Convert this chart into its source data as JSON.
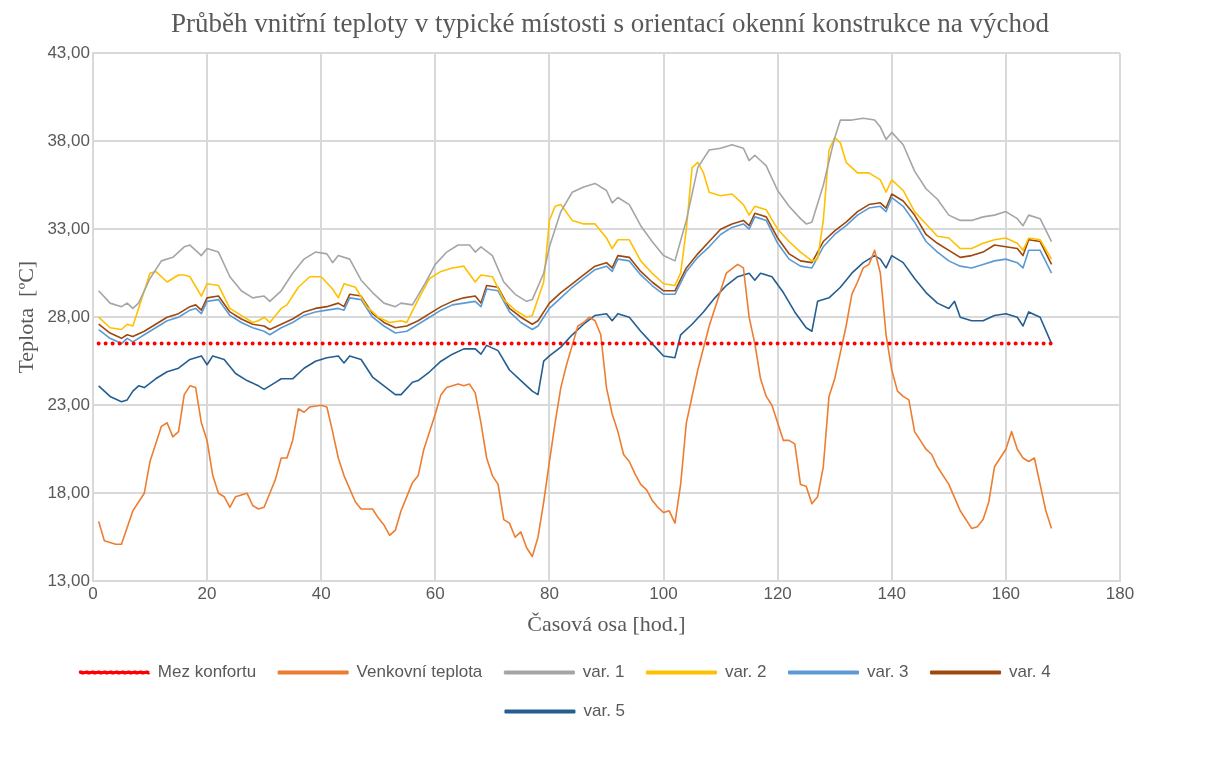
{
  "chart_data": {
    "type": "line",
    "title": "Průběh vnitřní teploty v typické místosti s orientací okenní konstrukce na východ",
    "xlabel": "Časová osa [hod.]",
    "ylabel": "Teplota  [ºC]",
    "xlim": [
      0,
      180
    ],
    "xticks": [
      0,
      20,
      40,
      60,
      80,
      100,
      120,
      140,
      160,
      180
    ],
    "ylim": [
      13,
      43
    ],
    "yticks": [
      {
        "value": 13,
        "label": "13,00"
      },
      {
        "value": 18,
        "label": "18,00"
      },
      {
        "value": 23,
        "label": "23,00"
      },
      {
        "value": 28,
        "label": "28,00"
      },
      {
        "value": 33,
        "label": "33,00"
      },
      {
        "value": 38,
        "label": "38,00"
      },
      {
        "value": 43,
        "label": "43,00"
      }
    ],
    "grid": true,
    "legend": "bottom",
    "marker": "none",
    "series": [
      {
        "name": "Mez konfortu",
        "color": "#ff0000",
        "line_style": "dotted",
        "x": [
          1,
          168
        ],
        "values": [
          26.5,
          26.5
        ]
      },
      {
        "name": "Venkovní teplota",
        "color": "#ed7d31",
        "x": [
          1,
          2,
          4,
          5,
          7,
          9,
          10,
          12,
          13,
          14,
          15,
          16,
          17,
          18,
          19,
          20,
          21,
          22,
          23,
          24,
          25,
          27,
          28,
          29,
          30,
          31,
          32,
          33,
          34,
          35,
          36,
          37,
          38,
          40,
          41,
          42,
          43,
          44,
          46,
          47,
          49,
          50,
          51,
          52,
          53,
          54,
          56,
          57,
          58,
          60,
          61,
          62,
          64,
          65,
          66,
          67,
          68,
          69,
          70,
          71,
          72,
          73,
          74,
          75,
          76,
          77,
          78,
          79,
          80,
          81,
          82,
          83,
          84,
          85,
          86,
          87,
          88,
          89,
          90,
          91,
          92,
          93,
          94,
          95,
          96,
          97,
          98,
          99,
          100,
          101,
          102,
          103,
          104,
          106,
          108,
          110,
          111,
          113,
          114,
          115,
          116,
          117,
          118,
          119,
          120,
          121,
          122,
          123,
          124,
          125,
          126,
          127,
          128,
          129,
          130,
          132,
          133,
          134,
          135,
          136,
          137,
          138,
          139,
          140,
          141,
          142,
          143,
          144,
          145,
          146,
          147,
          148,
          150,
          152,
          154,
          155,
          156,
          157,
          158,
          159,
          160,
          161,
          162,
          163,
          164,
          165,
          166,
          167,
          168
        ],
        "values": [
          16.4,
          15.3,
          15.1,
          15.1,
          17,
          18,
          19.8,
          21.8,
          22,
          21.2,
          21.5,
          23.6,
          24.1,
          24,
          22,
          21,
          19,
          18,
          17.8,
          17.2,
          17.8,
          18,
          17.3,
          17.1,
          17.2,
          18,
          18.8,
          20,
          20,
          21,
          22.8,
          22.6,
          22.9,
          23,
          22.9,
          21.5,
          20,
          19,
          17.5,
          17.1,
          17.1,
          16.6,
          16.2,
          15.6,
          15.9,
          17,
          18.6,
          19,
          20.5,
          22.5,
          23.6,
          24,
          24.2,
          24.1,
          24.2,
          23.7,
          22,
          20,
          19,
          18.5,
          16.5,
          16.3,
          15.5,
          15.8,
          14.9,
          14.4,
          15.5,
          17.5,
          19.8,
          22,
          24,
          25.3,
          26.4,
          27.5,
          27.7,
          28,
          27.8,
          27,
          24,
          22.5,
          21.5,
          20.2,
          19.8,
          19.1,
          18.5,
          18.2,
          17.6,
          17.2,
          16.9,
          17,
          16.3,
          18.5,
          22,
          25,
          27.5,
          29.5,
          30.5,
          31,
          30.8,
          28,
          26.5,
          24.5,
          23.5,
          23,
          22,
          21,
          21,
          20.8,
          18.5,
          18.4,
          17.4,
          17.8,
          19.5,
          23.5,
          24.5,
          27.5,
          29.3,
          30,
          30.8,
          31,
          31.8,
          30.5,
          27,
          25,
          23.8,
          23.5,
          23.3,
          21.5,
          21,
          20.5,
          20.2,
          19.5,
          18.5,
          17,
          16,
          16.1,
          16.5,
          17.5,
          19.5,
          20,
          20.5,
          21.5,
          20.5,
          20,
          19.8,
          20,
          18.5,
          17,
          16
        ]
      },
      {
        "name": "var. 1",
        "color": "#a5a5a5",
        "x": [
          1,
          3,
          5,
          6,
          7,
          8,
          10,
          12,
          14,
          16,
          17,
          19,
          20,
          22,
          24,
          26,
          28,
          30,
          31,
          33,
          35,
          37,
          39,
          41,
          42,
          43,
          45,
          47,
          49,
          51,
          53,
          54,
          56,
          58,
          60,
          62,
          64,
          66,
          67,
          68,
          70,
          72,
          74,
          76,
          77,
          79,
          80,
          82,
          84,
          86,
          88,
          90,
          91,
          92,
          94,
          96,
          98,
          100,
          102,
          104,
          106,
          108,
          110,
          112,
          114,
          115,
          116,
          118,
          120,
          122,
          124,
          125,
          126,
          128,
          130,
          131,
          133,
          135,
          137,
          138,
          139,
          140,
          142,
          144,
          146,
          148,
          150,
          152,
          154,
          156,
          158,
          160,
          162,
          163,
          164,
          166,
          168
        ],
        "values": [
          29.5,
          28.8,
          28.6,
          28.8,
          28.5,
          28.8,
          30.2,
          31.2,
          31.4,
          32,
          32.1,
          31.5,
          31.9,
          31.7,
          30.3,
          29.5,
          29.1,
          29.2,
          28.9,
          29.5,
          30.5,
          31.3,
          31.7,
          31.6,
          31.1,
          31.5,
          31.3,
          30.1,
          29.4,
          28.8,
          28.6,
          28.8,
          28.7,
          29.8,
          31,
          31.7,
          32.1,
          32.1,
          31.7,
          32,
          31.5,
          30,
          29.3,
          28.9,
          29,
          30.5,
          32,
          34,
          35.1,
          35.4,
          35.6,
          35.2,
          34.5,
          34.8,
          34.4,
          33.2,
          32.3,
          31.5,
          31.2,
          33.5,
          36.5,
          37.5,
          37.6,
          37.8,
          37.6,
          36.9,
          37.2,
          36.6,
          35.2,
          34.3,
          33.6,
          33.3,
          33.4,
          35.5,
          38.2,
          39.2,
          39.2,
          39.3,
          39.2,
          38.8,
          38.1,
          38.5,
          37.8,
          36.3,
          35.3,
          34.7,
          33.8,
          33.5,
          33.5,
          33.7,
          33.8,
          34,
          33.6,
          33.2,
          33.8,
          33.6,
          32.3
        ]
      },
      {
        "name": "var. 2",
        "color": "#ffc000",
        "x": [
          1,
          3,
          5,
          6,
          7,
          8,
          10,
          11,
          13,
          15,
          16,
          17,
          19,
          20,
          22,
          24,
          26,
          28,
          29,
          30,
          31,
          33,
          34,
          36,
          38,
          40,
          42,
          43,
          44,
          46,
          48,
          50,
          52,
          54,
          55,
          57,
          59,
          61,
          63,
          65,
          67,
          68,
          70,
          72,
          74,
          76,
          77,
          79,
          80,
          81,
          82,
          84,
          86,
          88,
          90,
          91,
          92,
          94,
          96,
          98,
          100,
          102,
          103,
          104,
          105,
          106,
          107,
          108,
          110,
          112,
          114,
          115,
          116,
          118,
          120,
          122,
          124,
          126,
          127,
          128,
          129,
          130,
          131,
          132,
          134,
          136,
          138,
          139,
          140,
          142,
          144,
          146,
          148,
          150,
          152,
          154,
          156,
          158,
          160,
          162,
          163,
          164,
          166,
          168
        ],
        "values": [
          28,
          27.4,
          27.3,
          27.6,
          27.5,
          28.5,
          30.5,
          30.6,
          30,
          30.4,
          30.4,
          30.3,
          29.2,
          29.9,
          29.8,
          28.5,
          28.1,
          27.7,
          27.8,
          28,
          27.7,
          28.5,
          28.7,
          29.7,
          30.3,
          30.3,
          29.6,
          29.1,
          29.9,
          29.7,
          28.6,
          28,
          27.7,
          27.8,
          27.7,
          29,
          30.2,
          30.6,
          30.8,
          30.9,
          30,
          30.4,
          30.3,
          29,
          28.4,
          28,
          28.1,
          30,
          33.5,
          34.3,
          34.4,
          33.5,
          33.3,
          33.3,
          32.5,
          31.9,
          32.4,
          32.4,
          31.2,
          30.5,
          29.9,
          29.8,
          30.5,
          33,
          36.5,
          36.8,
          36.2,
          35.1,
          34.9,
          35,
          34.4,
          33.8,
          34.3,
          34.1,
          33,
          32.3,
          31.7,
          31.2,
          31.3,
          33.5,
          37.5,
          38.2,
          37.9,
          36.8,
          36.2,
          36.2,
          35.8,
          35.1,
          35.8,
          35.2,
          34,
          33.3,
          32.6,
          32.5,
          31.9,
          31.9,
          32.2,
          32.4,
          32.5,
          32.2,
          31.8,
          32.5,
          32.4,
          31.3
        ]
      },
      {
        "name": "var. 3",
        "color": "#5b9bd5",
        "x": [
          1,
          3,
          5,
          6,
          7,
          9,
          11,
          13,
          15,
          17,
          18,
          19,
          20,
          22,
          24,
          26,
          28,
          30,
          31,
          33,
          35,
          37,
          39,
          41,
          43,
          44,
          45,
          47,
          49,
          51,
          53,
          55,
          57,
          59,
          61,
          63,
          65,
          67,
          68,
          69,
          71,
          73,
          75,
          77,
          78,
          80,
          82,
          84,
          86,
          88,
          90,
          91,
          92,
          94,
          96,
          98,
          100,
          102,
          104,
          106,
          108,
          110,
          112,
          114,
          115,
          116,
          118,
          120,
          122,
          124,
          126,
          128,
          130,
          132,
          134,
          136,
          138,
          139,
          140,
          142,
          144,
          146,
          148,
          150,
          152,
          154,
          156,
          158,
          160,
          162,
          163,
          164,
          166,
          168
        ],
        "values": [
          27.3,
          26.8,
          26.5,
          26.8,
          26.6,
          27,
          27.4,
          27.8,
          28,
          28.4,
          28.5,
          28.2,
          28.9,
          29,
          28.1,
          27.7,
          27.4,
          27.2,
          27,
          27.4,
          27.7,
          28.1,
          28.3,
          28.4,
          28.5,
          28.4,
          29.1,
          29,
          28,
          27.5,
          27.1,
          27.2,
          27.6,
          28,
          28.4,
          28.7,
          28.8,
          28.9,
          28.6,
          29.6,
          29.5,
          28.3,
          27.7,
          27.3,
          27.5,
          28.5,
          29.1,
          29.7,
          30.2,
          30.7,
          30.9,
          30.6,
          31.3,
          31.2,
          30.4,
          29.8,
          29.3,
          29.3,
          30.6,
          31.4,
          32,
          32.7,
          33.1,
          33.3,
          33,
          33.7,
          33.5,
          32.2,
          31.3,
          30.9,
          30.8,
          32,
          32.7,
          33.2,
          33.8,
          34.2,
          34.3,
          34,
          34.8,
          34.3,
          33.4,
          32.3,
          31.7,
          31.2,
          30.9,
          30.8,
          31,
          31.2,
          31.3,
          31.1,
          30.8,
          31.8,
          31.8,
          30.5
        ]
      },
      {
        "name": "var. 4",
        "color": "#9e480e",
        "x": [
          1,
          3,
          5,
          6,
          7,
          9,
          11,
          13,
          15,
          17,
          18,
          19,
          20,
          22,
          24,
          26,
          28,
          30,
          31,
          33,
          35,
          37,
          39,
          41,
          43,
          44,
          45,
          47,
          49,
          51,
          53,
          55,
          57,
          59,
          61,
          63,
          65,
          67,
          68,
          69,
          71,
          73,
          75,
          77,
          78,
          80,
          82,
          84,
          86,
          88,
          90,
          91,
          92,
          94,
          96,
          98,
          100,
          102,
          104,
          106,
          108,
          110,
          112,
          114,
          115,
          116,
          118,
          120,
          122,
          124,
          126,
          128,
          130,
          132,
          134,
          136,
          138,
          139,
          140,
          142,
          144,
          146,
          148,
          150,
          152,
          154,
          156,
          158,
          160,
          162,
          163,
          164,
          166,
          168
        ],
        "values": [
          27.6,
          27.1,
          26.8,
          27,
          26.9,
          27.2,
          27.6,
          28,
          28.2,
          28.6,
          28.7,
          28.4,
          29.1,
          29.2,
          28.3,
          27.9,
          27.6,
          27.5,
          27.3,
          27.6,
          27.9,
          28.3,
          28.5,
          28.6,
          28.8,
          28.6,
          29.3,
          29.2,
          28.2,
          27.7,
          27.4,
          27.5,
          27.8,
          28.2,
          28.6,
          28.9,
          29.1,
          29.2,
          28.8,
          29.8,
          29.7,
          28.5,
          28,
          27.6,
          27.8,
          28.8,
          29.4,
          29.9,
          30.4,
          30.9,
          31.1,
          30.8,
          31.5,
          31.4,
          30.6,
          30,
          29.5,
          29.5,
          30.8,
          31.6,
          32.3,
          33,
          33.3,
          33.5,
          33.2,
          33.9,
          33.7,
          32.5,
          31.6,
          31.2,
          31.1,
          32.3,
          32.9,
          33.4,
          34,
          34.4,
          34.5,
          34.2,
          35,
          34.6,
          33.8,
          32.7,
          32.2,
          31.8,
          31.4,
          31.5,
          31.7,
          32.1,
          32,
          31.9,
          31.5,
          32.4,
          32.3,
          31
        ]
      },
      {
        "name": "var. 5",
        "color": "#255e91",
        "x": [
          1,
          3,
          5,
          6,
          7,
          8,
          9,
          11,
          13,
          15,
          17,
          19,
          20,
          21,
          23,
          25,
          27,
          29,
          30,
          32,
          33,
          35,
          37,
          39,
          41,
          43,
          44,
          45,
          47,
          49,
          51,
          53,
          54,
          56,
          57,
          59,
          61,
          63,
          65,
          67,
          68,
          69,
          71,
          73,
          75,
          77,
          78,
          79,
          80,
          82,
          84,
          86,
          88,
          90,
          91,
          92,
          94,
          96,
          98,
          100,
          102,
          103,
          105,
          107,
          109,
          111,
          113,
          115,
          116,
          117,
          119,
          121,
          123,
          125,
          126,
          127,
          129,
          131,
          133,
          135,
          137,
          138,
          139,
          140,
          142,
          144,
          146,
          148,
          150,
          151,
          152,
          154,
          156,
          158,
          160,
          162,
          163,
          164,
          166,
          168
        ],
        "values": [
          24.1,
          23.5,
          23.2,
          23.3,
          23.8,
          24.1,
          24,
          24.5,
          24.9,
          25.1,
          25.6,
          25.8,
          25.3,
          25.8,
          25.6,
          24.8,
          24.4,
          24.1,
          23.9,
          24.3,
          24.5,
          24.5,
          25.1,
          25.5,
          25.7,
          25.8,
          25.4,
          25.8,
          25.6,
          24.6,
          24.1,
          23.6,
          23.6,
          24.3,
          24.4,
          24.9,
          25.5,
          25.9,
          26.2,
          26.2,
          25.9,
          26.4,
          26.1,
          25,
          24.4,
          23.8,
          23.6,
          25.5,
          25.8,
          26.3,
          27,
          27.6,
          28.1,
          28.2,
          27.8,
          28.2,
          28,
          27.2,
          26.5,
          25.8,
          25.7,
          27,
          27.6,
          28.3,
          29.1,
          29.8,
          30.3,
          30.5,
          30.1,
          30.5,
          30.3,
          29.4,
          28.3,
          27.4,
          27.2,
          28.9,
          29.1,
          29.7,
          30.5,
          31.1,
          31.5,
          31.3,
          30.8,
          31.5,
          31.1,
          30.2,
          29.4,
          28.8,
          28.5,
          28.9,
          28,
          27.8,
          27.8,
          28.1,
          28.2,
          28,
          27.5,
          28.3,
          28,
          26.5
        ]
      }
    ]
  }
}
